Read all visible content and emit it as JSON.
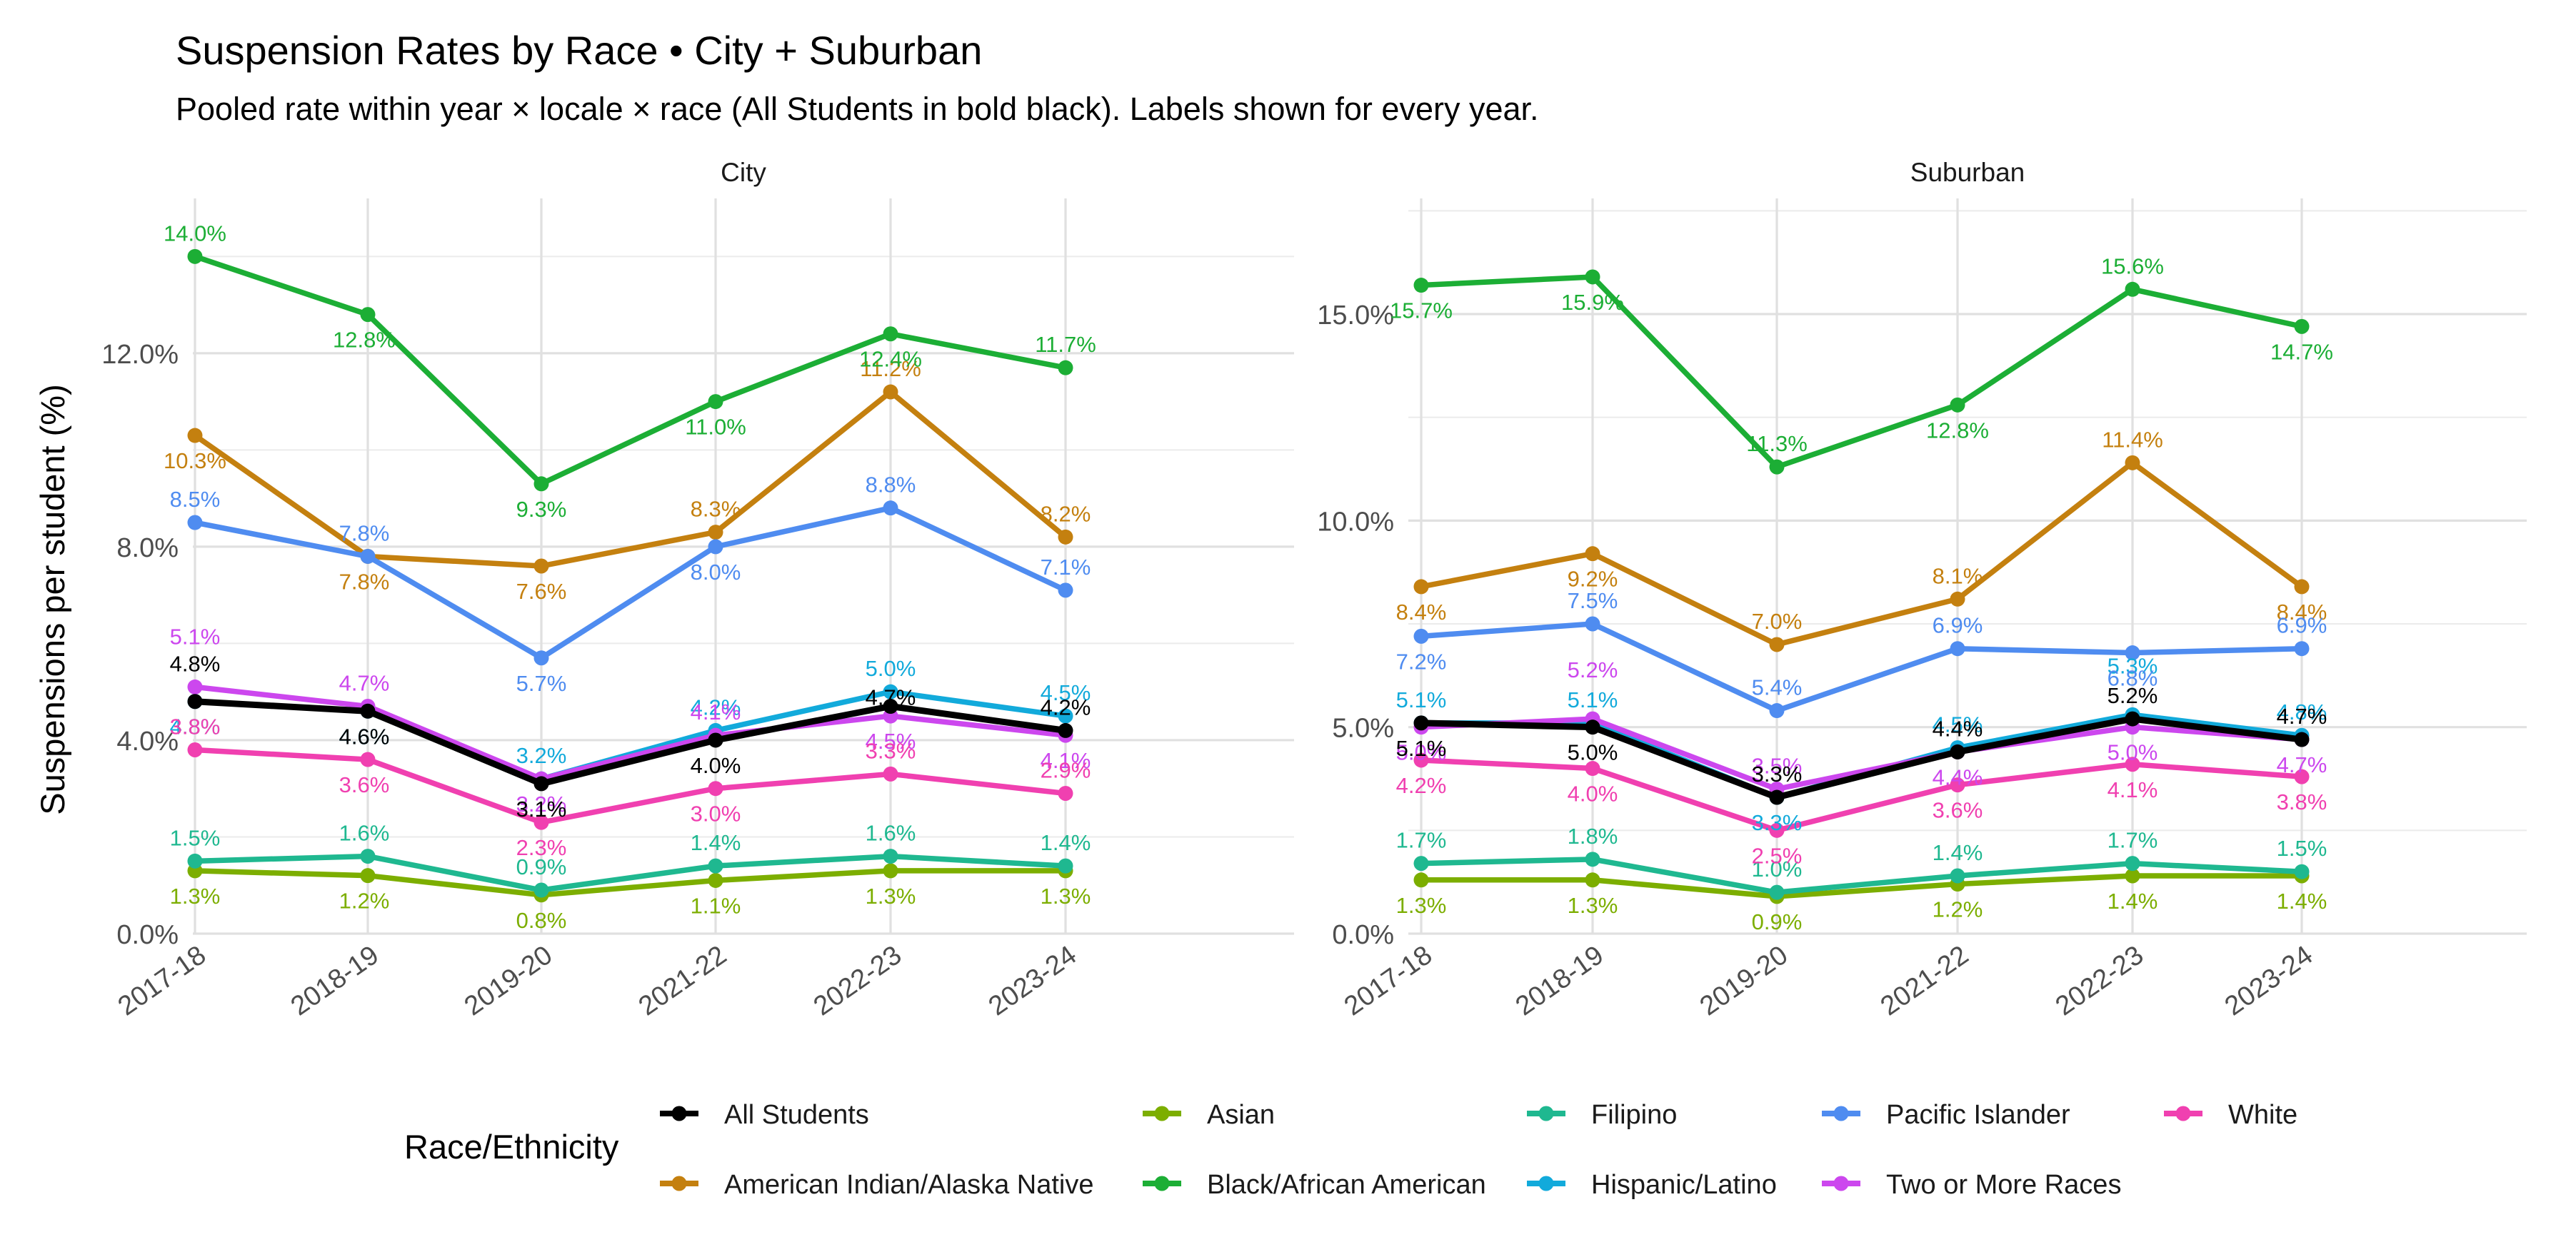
{
  "title": "Suspension Rates by Race • City + Suburban",
  "subtitle": "Pooled rate within year × locale × race (All Students in bold black). Labels shown for every year.",
  "ylabel": "Suspensions per student (%)",
  "legend": {
    "title": "Race/Ethnicity",
    "placement": "bottom",
    "rows": [
      [
        "All Students",
        "Asian",
        "Filipino",
        "Pacific Islander",
        "White"
      ],
      [
        "American Indian/Alaska Native",
        "Black/African American",
        "Hispanic/Latino",
        "Two or More Races"
      ]
    ]
  },
  "colors": {
    "All Students": "#000000",
    "American Indian/Alaska Native": "#C4800F",
    "Asian": "#7CAE00",
    "Black/African American": "#1CAE35",
    "Filipino": "#1FB890",
    "Hispanic/Latino": "#12AADB",
    "Pacific Islander": "#4F8CF0",
    "Two or More Races": "#CC47EE",
    "White": "#F040B0"
  },
  "chart_data": [
    {
      "type": "line",
      "panel": "City",
      "x": [
        "2017-18",
        "2018-19",
        "2019-20",
        "2021-22",
        "2022-23",
        "2023-24"
      ],
      "y_ticks": [
        "0.0%",
        "4.0%",
        "8.0%",
        "12.0%"
      ],
      "y_tick_values": [
        0,
        4,
        8,
        12
      ],
      "ylim": [
        0,
        15.2
      ],
      "grid": true,
      "series": [
        {
          "name": "American Indian/Alaska Native",
          "values": [
            10.3,
            7.8,
            7.6,
            8.3,
            11.2,
            8.2
          ],
          "labels": [
            "10.3%",
            "7.8%",
            "7.6%",
            "8.3%",
            "11.2%",
            "8.2%"
          ]
        },
        {
          "name": "Asian",
          "values": [
            1.3,
            1.2,
            0.8,
            1.1,
            1.3,
            1.3
          ],
          "labels": [
            "1.3%",
            "1.2%",
            "0.8%",
            "1.1%",
            "1.3%",
            "1.3%"
          ]
        },
        {
          "name": "Black/African American",
          "values": [
            14.0,
            12.8,
            9.3,
            11.0,
            12.4,
            11.7
          ],
          "labels": [
            "14.0%",
            "12.8%",
            "9.3%",
            "11.0%",
            "12.4%",
            "11.7%"
          ]
        },
        {
          "name": "Filipino",
          "values": [
            1.5,
            1.6,
            0.9,
            1.4,
            1.6,
            1.4
          ],
          "labels": [
            "1.5%",
            "1.6%",
            "0.9%",
            "1.4%",
            "1.6%",
            "1.4%"
          ]
        },
        {
          "name": "Hispanic/Latino",
          "values": [
            4.8,
            4.6,
            3.2,
            4.2,
            5.0,
            4.5
          ],
          "labels": [
            "4.8%",
            "4.6%",
            "3.2%",
            "4.2%",
            "5.0%",
            "4.5%"
          ]
        },
        {
          "name": "Pacific Islander",
          "values": [
            8.5,
            7.8,
            5.7,
            8.0,
            8.8,
            7.1
          ],
          "labels": [
            "8.5%",
            "7.8%",
            "5.7%",
            "8.0%",
            "8.8%",
            "7.1%"
          ]
        },
        {
          "name": "Two or More Races",
          "values": [
            5.1,
            4.7,
            3.2,
            4.1,
            4.5,
            4.1
          ],
          "labels": [
            "5.1%",
            "4.7%",
            "3.2%",
            "4.1%",
            "4.5%",
            "4.1%"
          ]
        },
        {
          "name": "White",
          "values": [
            3.8,
            3.6,
            2.3,
            3.0,
            3.3,
            2.9
          ],
          "labels": [
            "3.8%",
            "3.6%",
            "2.3%",
            "3.0%",
            "3.3%",
            "2.9%"
          ]
        },
        {
          "name": "All Students",
          "values": [
            4.8,
            4.6,
            3.1,
            4.0,
            4.7,
            4.2
          ],
          "labels": [
            "4.8%",
            "4.6%",
            "3.1%",
            "4.0%",
            "4.7%",
            "4.2%"
          ]
        }
      ]
    },
    {
      "type": "line",
      "panel": "Suburban",
      "x": [
        "2017-18",
        "2018-19",
        "2019-20",
        "2021-22",
        "2022-23",
        "2023-24"
      ],
      "y_ticks": [
        "0.0%",
        "5.0%",
        "10.0%",
        "15.0%"
      ],
      "y_tick_values": [
        0,
        5,
        10,
        15
      ],
      "ylim": [
        0,
        17.8
      ],
      "grid": true,
      "series": [
        {
          "name": "American Indian/Alaska Native",
          "values": [
            8.4,
            9.2,
            7.0,
            8.1,
            11.4,
            8.4
          ],
          "labels": [
            "8.4%",
            "9.2%",
            "7.0%",
            "8.1%",
            "11.4%",
            "8.4%"
          ]
        },
        {
          "name": "Asian",
          "values": [
            1.3,
            1.3,
            0.9,
            1.2,
            1.4,
            1.4
          ],
          "labels": [
            "1.3%",
            "1.3%",
            "0.9%",
            "1.2%",
            "1.4%",
            "1.4%"
          ]
        },
        {
          "name": "Black/African American",
          "values": [
            15.7,
            15.9,
            11.3,
            12.8,
            15.6,
            14.7
          ],
          "labels": [
            "15.7%",
            "15.9%",
            "11.3%",
            "12.8%",
            "15.6%",
            "14.7%"
          ]
        },
        {
          "name": "Filipino",
          "values": [
            1.7,
            1.8,
            1.0,
            1.4,
            1.7,
            1.5
          ],
          "labels": [
            "1.7%",
            "1.8%",
            "1.0%",
            "1.4%",
            "1.7%",
            "1.5%"
          ]
        },
        {
          "name": "Hispanic/Latino",
          "values": [
            5.1,
            5.1,
            3.3,
            4.5,
            5.3,
            4.8
          ],
          "labels": [
            "5.1%",
            "5.1%",
            "3.3%",
            "4.5%",
            "5.3%",
            "4.8%"
          ]
        },
        {
          "name": "Pacific Islander",
          "values": [
            7.2,
            7.5,
            5.4,
            6.9,
            6.8,
            6.9
          ],
          "labels": [
            "7.2%",
            "7.5%",
            "5.4%",
            "6.9%",
            "6.8%",
            "6.9%"
          ]
        },
        {
          "name": "Two or More Races",
          "values": [
            5.0,
            5.2,
            3.5,
            4.4,
            5.0,
            4.7
          ],
          "labels": [
            "5.0%",
            "5.2%",
            "3.5%",
            "4.4%",
            "5.0%",
            "4.7%"
          ]
        },
        {
          "name": "White",
          "values": [
            4.2,
            4.0,
            2.5,
            3.6,
            4.1,
            3.8
          ],
          "labels": [
            "4.2%",
            "4.0%",
            "2.5%",
            "3.6%",
            "4.1%",
            "3.8%"
          ]
        },
        {
          "name": "All Students",
          "values": [
            5.1,
            5.0,
            3.3,
            4.4,
            5.2,
            4.7
          ],
          "labels": [
            "5.1%",
            "5.0%",
            "3.3%",
            "4.4%",
            "5.2%",
            "4.7%"
          ]
        }
      ]
    }
  ]
}
